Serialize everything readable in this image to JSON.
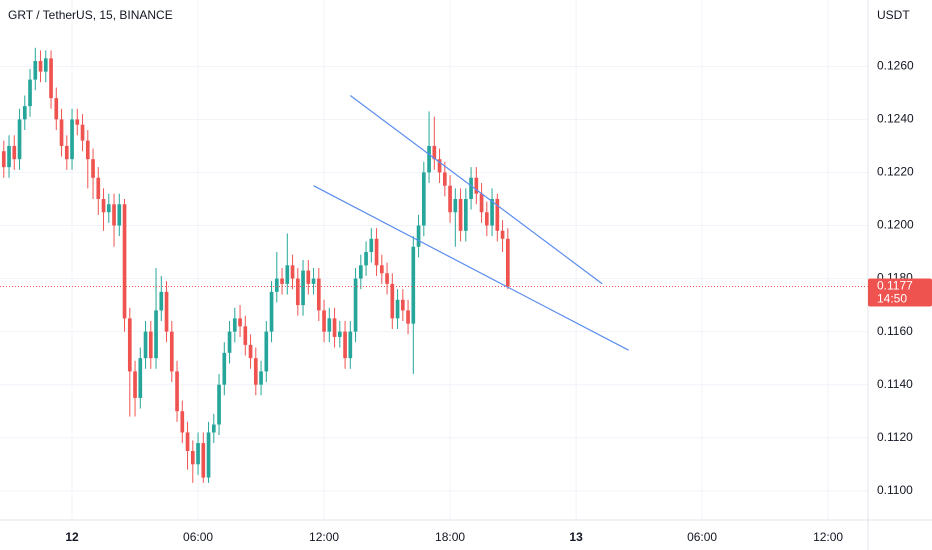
{
  "chart_data": {
    "type": "candlestick",
    "title": "GRT / TetherUS, 15, BINANCE",
    "y_axis_label": "USDT",
    "x": [
      -3.25,
      -3,
      -2.75,
      -2.5,
      -2.25,
      -2,
      -1.75,
      -1.5,
      -1.25,
      -1,
      -0.75,
      -0.5,
      -0.25,
      0,
      0.25,
      0.5,
      0.75,
      1,
      1.25,
      1.5,
      1.75,
      2,
      2.25,
      2.5,
      2.75,
      3,
      3.25,
      3.5,
      3.75,
      4,
      4.25,
      4.5,
      4.75,
      5,
      5.25,
      5.5,
      5.75,
      6,
      6.25,
      6.5,
      6.75,
      7,
      7.25,
      7.5,
      7.75,
      8,
      8.25,
      8.5,
      8.75,
      9,
      9.25,
      9.5,
      9.75,
      10,
      10.25,
      10.5,
      10.75,
      11,
      11.25,
      11.5,
      11.75,
      12,
      12.25,
      12.5,
      12.75,
      13,
      13.25,
      13.5,
      13.75,
      14,
      14.25,
      14.5,
      14.75,
      15,
      15.25,
      15.5,
      15.75,
      16,
      16.25,
      16.5,
      16.75,
      17,
      17.25,
      17.5,
      17.75,
      18,
      18.25,
      18.5,
      18.75,
      19,
      19.25,
      19.5,
      19.75,
      20,
      20.25,
      20.5,
      20.75
    ],
    "open": [
      0.1228,
      0.1222,
      0.123,
      0.1225,
      0.124,
      0.1245,
      0.1255,
      0.1262,
      0.1258,
      0.1263,
      0.1248,
      0.124,
      0.123,
      0.1225,
      0.124,
      0.1238,
      0.1232,
      0.1225,
      0.1218,
      0.121,
      0.1205,
      0.1208,
      0.12,
      0.1208,
      0.1165,
      0.1145,
      0.1135,
      0.115,
      0.116,
      0.115,
      0.1168,
      0.1175,
      0.116,
      0.1145,
      0.113,
      0.1122,
      0.1115,
      0.111,
      0.1118,
      0.1105,
      0.1122,
      0.1125,
      0.114,
      0.1152,
      0.116,
      0.1165,
      0.1162,
      0.1155,
      0.115,
      0.114,
      0.1145,
      0.116,
      0.1175,
      0.118,
      0.1178,
      0.1185,
      0.118,
      0.117,
      0.1183,
      0.1178,
      0.118,
      0.1168,
      0.116,
      0.1165,
      0.1158,
      0.116,
      0.115,
      0.116,
      0.118,
      0.1185,
      0.119,
      0.1195,
      0.1185,
      0.1182,
      0.1178,
      0.1165,
      0.1172,
      0.1168,
      0.1163,
      0.1192,
      0.12,
      0.122,
      0.123,
      0.1225,
      0.122,
      0.1215,
      0.1205,
      0.121,
      0.1198,
      0.121,
      0.1218,
      0.1212,
      0.1205,
      0.12,
      0.121,
      0.1198,
      0.1195
    ],
    "high": [
      0.1232,
      0.1234,
      0.1234,
      0.1244,
      0.1249,
      0.1259,
      0.1267,
      0.1266,
      0.1266,
      0.1266,
      0.1252,
      0.1244,
      0.1234,
      0.1244,
      0.1244,
      0.1242,
      0.1236,
      0.1229,
      0.1222,
      0.1214,
      0.1212,
      0.1212,
      0.1212,
      0.121,
      0.1169,
      0.1149,
      0.1154,
      0.1164,
      0.1164,
      0.1184,
      0.1181,
      0.1179,
      0.1164,
      0.1149,
      0.1134,
      0.1126,
      0.1119,
      0.1122,
      0.1122,
      0.1126,
      0.1129,
      0.1144,
      0.1156,
      0.1164,
      0.1169,
      0.117,
      0.1166,
      0.1159,
      0.1154,
      0.1149,
      0.1164,
      0.1179,
      0.119,
      0.1184,
      0.1197,
      0.1189,
      0.1184,
      0.1187,
      0.1187,
      0.1184,
      0.1184,
      0.1172,
      0.1169,
      0.1169,
      0.1164,
      0.1164,
      0.1164,
      0.1184,
      0.1189,
      0.1194,
      0.1199,
      0.1199,
      0.1189,
      0.1186,
      0.1182,
      0.1176,
      0.1176,
      0.1172,
      0.1196,
      0.1204,
      0.1224,
      0.1243,
      0.1241,
      0.1229,
      0.1224,
      0.1219,
      0.1214,
      0.1214,
      0.1214,
      0.1222,
      0.1222,
      0.1216,
      0.1209,
      0.1214,
      0.1212,
      0.1202,
      0.1199
    ],
    "low": [
      0.1218,
      0.1218,
      0.1221,
      0.1221,
      0.1236,
      0.1241,
      0.1251,
      0.1254,
      0.1254,
      0.1244,
      0.1236,
      0.1226,
      0.1221,
      0.1221,
      0.1234,
      0.1228,
      0.1214,
      0.121,
      0.1204,
      0.1198,
      0.1201,
      0.1192,
      0.1196,
      0.116,
      0.1128,
      0.1128,
      0.1131,
      0.1146,
      0.1146,
      0.1146,
      0.1164,
      0.1156,
      0.1141,
      0.1126,
      0.1118,
      0.1108,
      0.1103,
      0.1106,
      0.1103,
      0.1103,
      0.1118,
      0.1121,
      0.1136,
      0.1148,
      0.1156,
      0.1158,
      0.1151,
      0.1146,
      0.1136,
      0.1136,
      0.1141,
      0.1156,
      0.1171,
      0.1174,
      0.1174,
      0.1176,
      0.1166,
      0.1166,
      0.1174,
      0.1174,
      0.1164,
      0.1156,
      0.1156,
      0.1154,
      0.1154,
      0.1146,
      0.1146,
      0.1156,
      0.1176,
      0.1181,
      0.1186,
      0.1181,
      0.1178,
      0.1174,
      0.1161,
      0.1161,
      0.1164,
      0.1159,
      0.1144,
      0.1188,
      0.1196,
      0.1216,
      0.1221,
      0.1216,
      0.1211,
      0.1201,
      0.1192,
      0.1194,
      0.1194,
      0.1206,
      0.1208,
      0.1201,
      0.1196,
      0.1196,
      0.1194,
      0.119,
      0.1176
    ],
    "close": [
      0.1222,
      0.123,
      0.1225,
      0.124,
      0.1245,
      0.1255,
      0.1262,
      0.1258,
      0.1263,
      0.1248,
      0.124,
      0.123,
      0.1225,
      0.124,
      0.1238,
      0.1232,
      0.1225,
      0.1218,
      0.121,
      0.1205,
      0.1208,
      0.12,
      0.1208,
      0.1165,
      0.1145,
      0.1135,
      0.115,
      0.116,
      0.115,
      0.1168,
      0.1175,
      0.116,
      0.1145,
      0.113,
      0.1122,
      0.1115,
      0.111,
      0.1118,
      0.1105,
      0.1122,
      0.1125,
      0.114,
      0.1152,
      0.116,
      0.1165,
      0.1162,
      0.1155,
      0.115,
      0.114,
      0.1145,
      0.116,
      0.1175,
      0.118,
      0.1178,
      0.1185,
      0.118,
      0.117,
      0.1183,
      0.1178,
      0.118,
      0.1168,
      0.116,
      0.1165,
      0.1158,
      0.116,
      0.115,
      0.116,
      0.118,
      0.1185,
      0.119,
      0.1195,
      0.1185,
      0.1182,
      0.1178,
      0.1165,
      0.1172,
      0.1168,
      0.1163,
      0.1192,
      0.12,
      0.122,
      0.123,
      0.1225,
      0.122,
      0.1215,
      0.1205,
      0.121,
      0.1198,
      0.121,
      0.1218,
      0.1212,
      0.1205,
      0.12,
      0.121,
      0.1198,
      0.1195,
      0.1177
    ],
    "up_color": "#26a69a",
    "down_color": "#ef5350",
    "last_price": 0.1177,
    "countdown": "14:50",
    "trend_lines": [
      {
        "x": [
          13.25,
          25.25
        ],
        "y": [
          0.1249,
          0.1178
        ]
      },
      {
        "x": [
          11.5,
          26.5
        ],
        "y": [
          0.1215,
          0.1153
        ]
      }
    ],
    "trend_line_color": "#5b8def",
    "xlim": [
      -3.43,
      37.9
    ],
    "ylim": [
      0.1089,
      0.1285
    ],
    "xticks": [
      {
        "value": 0,
        "label": "12"
      },
      {
        "value": 6,
        "label": "06:00"
      },
      {
        "value": 12,
        "label": "12:00"
      },
      {
        "value": 18,
        "label": "18:00"
      },
      {
        "value": 24,
        "label": "13"
      },
      {
        "value": 30,
        "label": "06:00"
      },
      {
        "value": 36,
        "label": "12:00"
      }
    ],
    "yticks": [
      {
        "value": 0.11,
        "label": "0.1100"
      },
      {
        "value": 0.112,
        "label": "0.1120"
      },
      {
        "value": 0.114,
        "label": "0.1140"
      },
      {
        "value": 0.116,
        "label": "0.1160"
      },
      {
        "value": 0.118,
        "label": "0.1180"
      },
      {
        "value": 0.12,
        "label": "0.1200"
      },
      {
        "value": 0.122,
        "label": "0.1220"
      },
      {
        "value": 0.124,
        "label": "0.1240"
      },
      {
        "value": 0.126,
        "label": "0.1260"
      }
    ],
    "grid": true
  }
}
